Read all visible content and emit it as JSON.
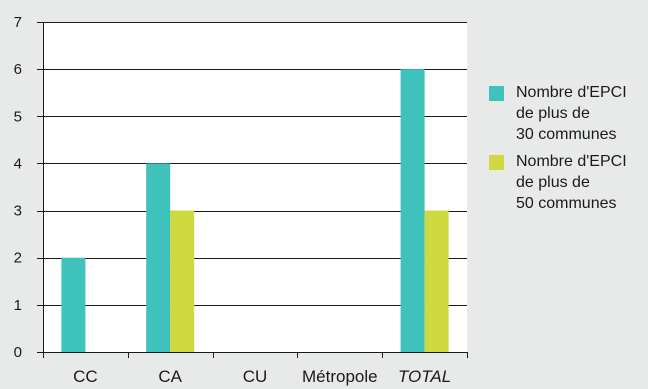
{
  "chart_data": {
    "type": "bar",
    "title": "",
    "xlabel": "",
    "ylabel": "",
    "categories": [
      "CC",
      "CA",
      "CU",
      "Métropole",
      "TOTAL"
    ],
    "italic_categories": [
      "TOTAL"
    ],
    "series": [
      {
        "name": "Nombre d'EPCI\nde plus de\n30 communes",
        "color": "#3fc1bc",
        "values": [
          2,
          4,
          0,
          0,
          6
        ]
      },
      {
        "name": "Nombre d'EPCI\nde plus de\n50 communes",
        "color": "#cdd93f",
        "values": [
          0,
          3,
          0,
          0,
          3
        ]
      }
    ],
    "ylim": [
      0,
      7
    ],
    "yticks": [
      "0",
      "1",
      "2",
      "3",
      "4",
      "5",
      "6",
      "7"
    ],
    "grid": true,
    "legend_position": "right",
    "colors": {
      "background": "#e8e9e9",
      "plot_background": "#ffffff",
      "grid": "#1a1a1a"
    }
  }
}
